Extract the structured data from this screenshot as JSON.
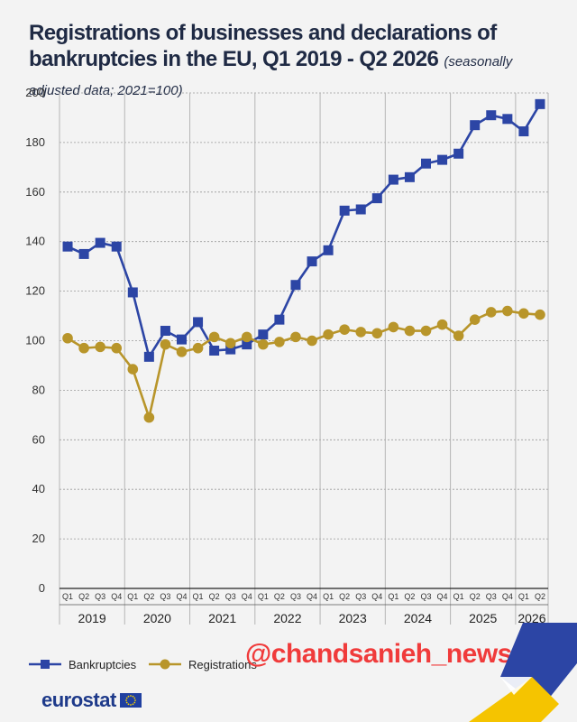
{
  "header": {
    "title": "Registrations of businesses and declarations of bankruptcies in the EU, Q1 2019 - Q2 2026",
    "subtitle": "(seasonally adjusted data; 2021=100)"
  },
  "chart_data": {
    "type": "line",
    "title": "Registrations of businesses and declarations of bankruptcies in the EU, Q1 2019 - Q2 2026",
    "subtitle": "(seasonally adjusted data; 2021=100)",
    "xlabel": "",
    "ylabel": "",
    "ylim": [
      0,
      200
    ],
    "yticks": [
      0,
      20,
      40,
      60,
      80,
      100,
      120,
      140,
      160,
      180,
      200
    ],
    "grid": true,
    "legend_position": "bottom-left",
    "years": [
      "2019",
      "2020",
      "2021",
      "2022",
      "2023",
      "2024",
      "2025",
      "2026"
    ],
    "quarter_labels": [
      "Q1",
      "Q2",
      "Q3",
      "Q4"
    ],
    "categories": [
      "Q1 2019",
      "Q2 2019",
      "Q3 2019",
      "Q4 2019",
      "Q1 2020",
      "Q2 2020",
      "Q3 2020",
      "Q4 2020",
      "Q1 2021",
      "Q2 2021",
      "Q3 2021",
      "Q4 2021",
      "Q1 2022",
      "Q2 2022",
      "Q3 2022",
      "Q4 2022",
      "Q1 2023",
      "Q2 2023",
      "Q3 2023",
      "Q4 2023",
      "Q1 2024",
      "Q2 2024",
      "Q3 2024",
      "Q4 2024",
      "Q1 2025",
      "Q2 2025",
      "Q3 2025",
      "Q4 2025",
      "Q1 2026",
      "Q2 2026"
    ],
    "series": [
      {
        "name": "Bankruptcies",
        "color": "#2c45a5",
        "marker": "square",
        "values": [
          138,
          135,
          139.5,
          138,
          119.5,
          93.5,
          104,
          100.5,
          107.5,
          96,
          96.5,
          98.5,
          102.5,
          108.5,
          122.5,
          132,
          136.5,
          152.5,
          153,
          157.5,
          165,
          166,
          171.5,
          173,
          175.5,
          187,
          191,
          189.5,
          184.5,
          195.5
        ]
      },
      {
        "name": "Registrations",
        "color": "#b8952a",
        "marker": "circle",
        "values": [
          101,
          97,
          97.5,
          97,
          88.5,
          69,
          98.5,
          95.5,
          97,
          101.5,
          99,
          101.5,
          98.5,
          99.5,
          101.5,
          100,
          102.5,
          104.5,
          103.5,
          103,
          105.5,
          104,
          104,
          106.5,
          102,
          108.5,
          111.5,
          112,
          111,
          110.5
        ]
      }
    ]
  },
  "watermark": "@chandsanieh_news",
  "logo": {
    "text": "eurostat",
    "flag_color": "#1f3fa0",
    "star_color": "#f5d000"
  }
}
